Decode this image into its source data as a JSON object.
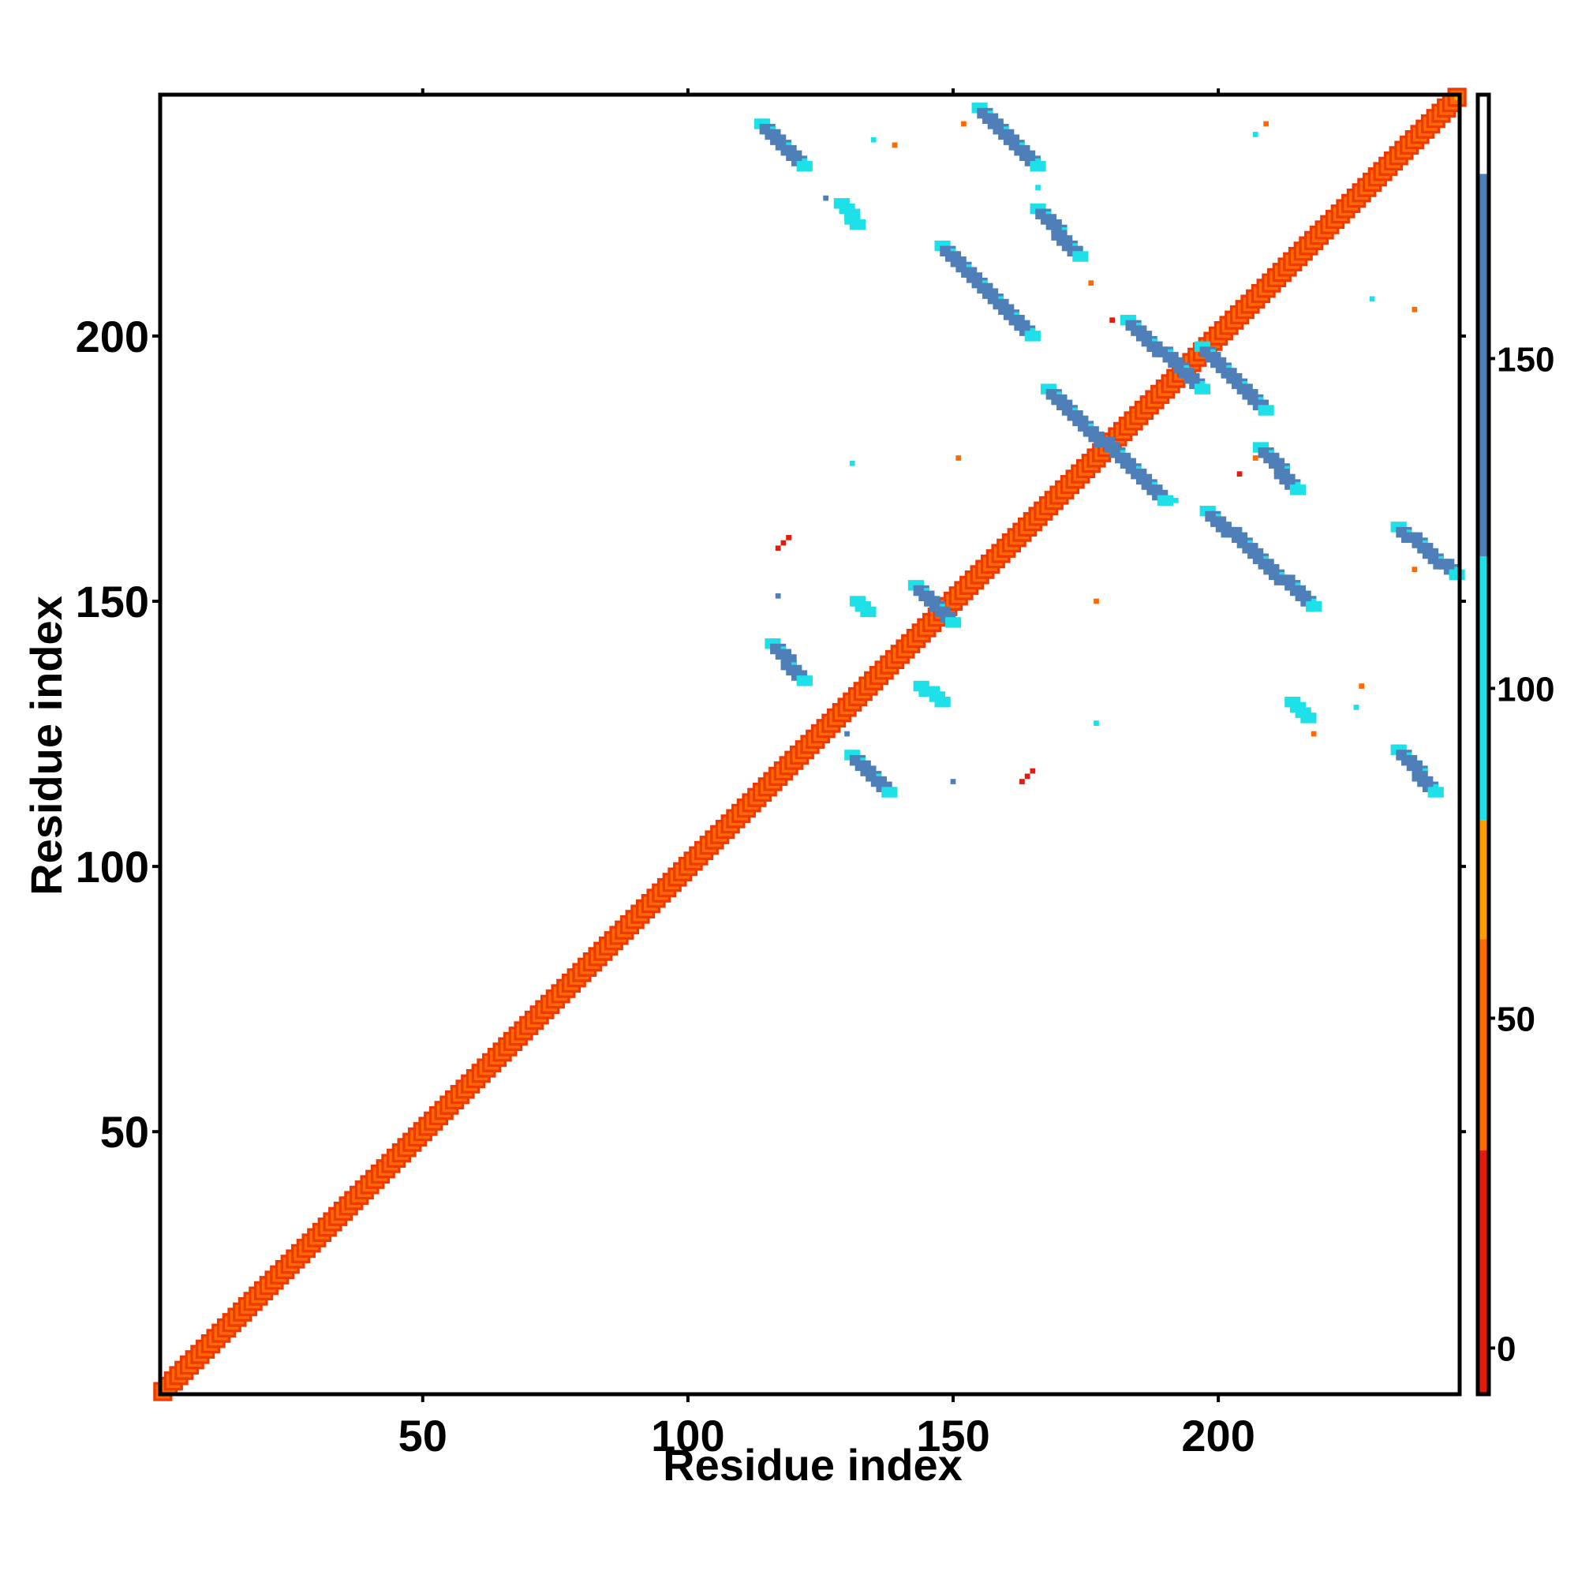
{
  "chart_data": {
    "type": "heatmap",
    "title": "",
    "xlabel": "Residue index",
    "ylabel": "Residue index",
    "xlim": [
      1,
      245
    ],
    "ylim": [
      1,
      245
    ],
    "x_ticks": [
      50,
      100,
      150,
      200
    ],
    "y_ticks": [
      50,
      100,
      150,
      200
    ],
    "symmetric": false,
    "diagonal": {
      "from": 1,
      "to": 245,
      "color": "#ff6a00",
      "edge_color": "#ee3a00",
      "center_color": "#ffb000"
    },
    "contact_segments": [
      {
        "x": [
          114,
          122
        ],
        "y": [
          240,
          232
        ],
        "value": 150
      },
      {
        "x": [
          155,
          166
        ],
        "y": [
          243,
          232
        ],
        "value": 150
      },
      {
        "x": [
          166,
          174
        ],
        "y": [
          224,
          215
        ],
        "value": 150
      },
      {
        "x": [
          129,
          132
        ],
        "y": [
          225,
          221
        ],
        "value": 100
      },
      {
        "x": [
          148,
          165
        ],
        "y": [
          217,
          200
        ],
        "value": 150
      },
      {
        "x": [
          183,
          197
        ],
        "y": [
          203,
          190
        ],
        "value": 150
      },
      {
        "x": [
          197,
          209
        ],
        "y": [
          198,
          186
        ],
        "value": 150
      },
      {
        "x": [
          168,
          190
        ],
        "y": [
          190,
          169
        ],
        "value": 150
      },
      {
        "x": [
          208,
          215
        ],
        "y": [
          179,
          171
        ],
        "value": 150
      },
      {
        "x": [
          198,
          218
        ],
        "y": [
          167,
          149
        ],
        "value": 150
      },
      {
        "x": [
          234,
          245
        ],
        "y": [
          164,
          155
        ],
        "value": 150
      },
      {
        "x": [
          143,
          150
        ],
        "y": [
          153,
          146
        ],
        "value": 150
      },
      {
        "x": [
          132,
          134
        ],
        "y": [
          150,
          148
        ],
        "value": 100
      },
      {
        "x": [
          116,
          122
        ],
        "y": [
          142,
          135
        ],
        "value": 150
      },
      {
        "x": [
          144,
          148
        ],
        "y": [
          134,
          131
        ],
        "value": 100
      },
      {
        "x": [
          131,
          138
        ],
        "y": [
          121,
          114
        ],
        "value": 150
      },
      {
        "x": [
          214,
          217
        ],
        "y": [
          131,
          128
        ],
        "value": 100
      },
      {
        "x": [
          234,
          241
        ],
        "y": [
          122,
          114
        ],
        "value": 150
      }
    ],
    "isolated_points": [
      {
        "x": 135,
        "y": 237,
        "value": 100
      },
      {
        "x": 139,
        "y": 236,
        "value": 50
      },
      {
        "x": 152,
        "y": 240,
        "value": 50
      },
      {
        "x": 209,
        "y": 240,
        "value": 50
      },
      {
        "x": 207,
        "y": 238,
        "value": 100
      },
      {
        "x": 126,
        "y": 226,
        "value": 150
      },
      {
        "x": 166,
        "y": 228,
        "value": 100
      },
      {
        "x": 176,
        "y": 210,
        "value": 50
      },
      {
        "x": 180,
        "y": 203,
        "value": 0
      },
      {
        "x": 237,
        "y": 205,
        "value": 50
      },
      {
        "x": 229,
        "y": 207,
        "value": 100
      },
      {
        "x": 131,
        "y": 176,
        "value": 100
      },
      {
        "x": 151,
        "y": 177,
        "value": 50
      },
      {
        "x": 207,
        "y": 177,
        "value": 50
      },
      {
        "x": 204,
        "y": 174,
        "value": 0
      },
      {
        "x": 192,
        "y": 169,
        "value": 100
      },
      {
        "x": 117,
        "y": 160,
        "value": 0
      },
      {
        "x": 118,
        "y": 161,
        "value": 0
      },
      {
        "x": 119,
        "y": 162,
        "value": 0
      },
      {
        "x": 117,
        "y": 151,
        "value": 150
      },
      {
        "x": 177,
        "y": 150,
        "value": 50
      },
      {
        "x": 237,
        "y": 156,
        "value": 50
      },
      {
        "x": 227,
        "y": 134,
        "value": 50
      },
      {
        "x": 226,
        "y": 130,
        "value": 100
      },
      {
        "x": 130,
        "y": 125,
        "value": 150
      },
      {
        "x": 177,
        "y": 127,
        "value": 100
      },
      {
        "x": 218,
        "y": 125,
        "value": 50
      },
      {
        "x": 150,
        "y": 116,
        "value": 150
      },
      {
        "x": 163,
        "y": 116,
        "value": 0
      },
      {
        "x": 164,
        "y": 117,
        "value": 0
      },
      {
        "x": 165,
        "y": 118,
        "value": 0
      }
    ],
    "colorbar": {
      "ticks": [
        0,
        50,
        100,
        150
      ],
      "range": [
        -7,
        190
      ],
      "colors": [
        {
          "from": -7,
          "to": 30,
          "color": "#e41a0c"
        },
        {
          "from": 30,
          "to": 62,
          "color": "#ff6a00"
        },
        {
          "from": 62,
          "to": 80,
          "color": "#ff9d00"
        },
        {
          "from": 80,
          "to": 120,
          "color": "#1ee0e8"
        },
        {
          "from": 120,
          "to": 178,
          "color": "#4f7fb8"
        },
        {
          "from": 178,
          "to": 190,
          "color": "#ffffff"
        }
      ]
    }
  }
}
